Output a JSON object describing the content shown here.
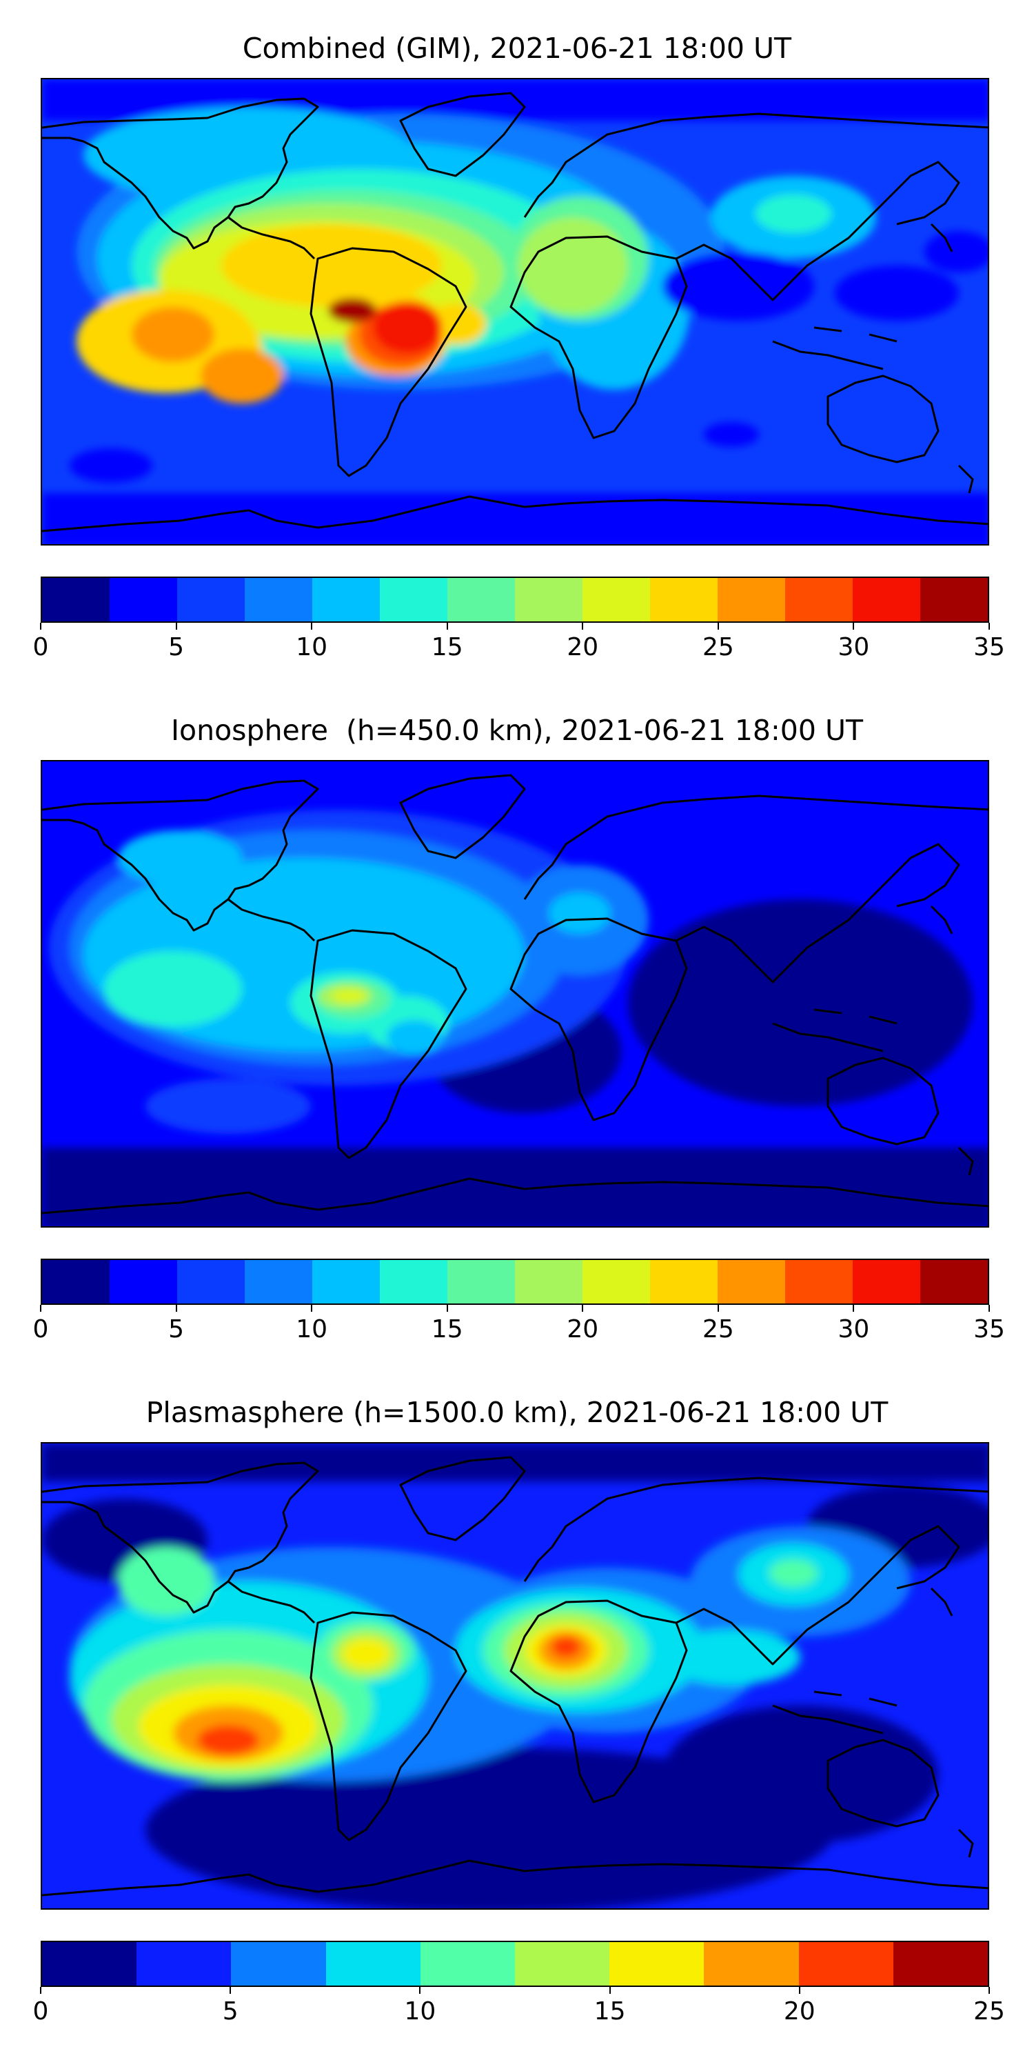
{
  "panels": [
    {
      "title": "Combined (GIM), 2021-06-21 18:00 UT",
      "colorbar": {
        "levels": [
          0,
          2.5,
          5,
          7.5,
          10,
          12.5,
          15,
          17.5,
          20,
          22.5,
          25,
          27.5,
          30,
          32.5,
          35
        ],
        "colors": [
          "#00008f",
          "#0000ff",
          "#0a3cff",
          "#0a7cff",
          "#00c0ff",
          "#20f5d5",
          "#5cf79e",
          "#a6f55c",
          "#dcf51a",
          "#ffd700",
          "#ff9400",
          "#ff4d00",
          "#f51200",
          "#a30000"
        ],
        "ticks": [
          "0",
          "5",
          "10",
          "15",
          "20",
          "25",
          "30",
          "35"
        ]
      }
    },
    {
      "title": "Ionosphere  (h=450.0 km), 2021-06-21 18:00 UT",
      "colorbar": {
        "levels": [
          0,
          2.5,
          5,
          7.5,
          10,
          12.5,
          15,
          17.5,
          20,
          22.5,
          25,
          27.5,
          30,
          32.5,
          35
        ],
        "colors": [
          "#00008f",
          "#0000ff",
          "#0a3cff",
          "#0a7cff",
          "#00c0ff",
          "#20f5d5",
          "#5cf79e",
          "#a6f55c",
          "#dcf51a",
          "#ffd700",
          "#ff9400",
          "#ff4d00",
          "#f51200",
          "#a30000"
        ],
        "ticks": [
          "0",
          "5",
          "10",
          "15",
          "20",
          "25",
          "30",
          "35"
        ]
      }
    },
    {
      "title": "Plasmasphere (h=1500.0 km), 2021-06-21 18:00 UT",
      "colorbar": {
        "levels": [
          0,
          2.5,
          5,
          7.5,
          10,
          12.5,
          15,
          17.5,
          20,
          22.5,
          25
        ],
        "colors": [
          "#00008f",
          "#0a1eff",
          "#0a7cff",
          "#00e0f0",
          "#50ffa8",
          "#aef74c",
          "#f8f000",
          "#ff9a00",
          "#ff3a00",
          "#a80000"
        ],
        "ticks": [
          "0",
          "5",
          "10",
          "15",
          "20",
          "25"
        ]
      }
    }
  ],
  "chart_data": [
    {
      "type": "heatmap",
      "title": "Combined (GIM), 2021-06-21 18:00 UT",
      "map": "world, plate carree",
      "colorbar_range": [
        0,
        35
      ],
      "colorbar_step": 2.5,
      "colorbar_ticks": [
        0,
        5,
        10,
        15,
        20,
        25,
        30,
        35
      ],
      "features": [
        {
          "region": "northern South America / Amazon",
          "value": 33
        },
        {
          "region": "eastern Brazil",
          "value": 31
        },
        {
          "region": "eastern Pacific west of South America",
          "value": 26
        },
        {
          "region": "southeast Pacific",
          "value": 26
        },
        {
          "region": "West Africa / Gulf of Guinea",
          "value": 21
        },
        {
          "region": "North Atlantic",
          "value": 20
        },
        {
          "region": "East Asia",
          "value": 14
        },
        {
          "region": "western Pacific / Indonesia",
          "value": 5
        },
        {
          "region": "Southern Ocean",
          "value": 5
        }
      ]
    },
    {
      "type": "heatmap",
      "title": "Ionosphere  (h=450.0 km), 2021-06-21 18:00 UT",
      "map": "world, plate carree",
      "colorbar_range": [
        0,
        35
      ],
      "colorbar_step": 2.5,
      "colorbar_ticks": [
        0,
        5,
        10,
        15,
        20,
        25,
        30,
        35
      ],
      "features": [
        {
          "region": "northern South America / Caribbean",
          "value": 20
        },
        {
          "region": "Brazil",
          "value": 18
        },
        {
          "region": "eastern Pacific",
          "value": 15
        },
        {
          "region": "North Atlantic",
          "value": 13
        },
        {
          "region": "North America",
          "value": 10
        },
        {
          "region": "Africa",
          "value": 7
        },
        {
          "region": "Asia",
          "value": 4
        },
        {
          "region": "Southern Ocean",
          "value": 2
        }
      ]
    },
    {
      "type": "heatmap",
      "title": "Plasmasphere (h=1500.0 km), 2021-06-21 18:00 UT",
      "map": "world, plate carree",
      "colorbar_range": [
        0,
        25
      ],
      "colorbar_step": 2.5,
      "colorbar_ticks": [
        0,
        5,
        10,
        15,
        20,
        25
      ],
      "features": [
        {
          "region": "southeast Pacific",
          "value": 21
        },
        {
          "region": "Central Africa",
          "value": 20
        },
        {
          "region": "northern South America",
          "value": 16
        },
        {
          "region": "tropical Atlantic",
          "value": 13
        },
        {
          "region": "East Asia",
          "value": 11
        },
        {
          "region": "Indian Ocean",
          "value": 9
        },
        {
          "region": "South Atlantic",
          "value": 3
        },
        {
          "region": "Antarctica",
          "value": 1
        }
      ]
    }
  ]
}
